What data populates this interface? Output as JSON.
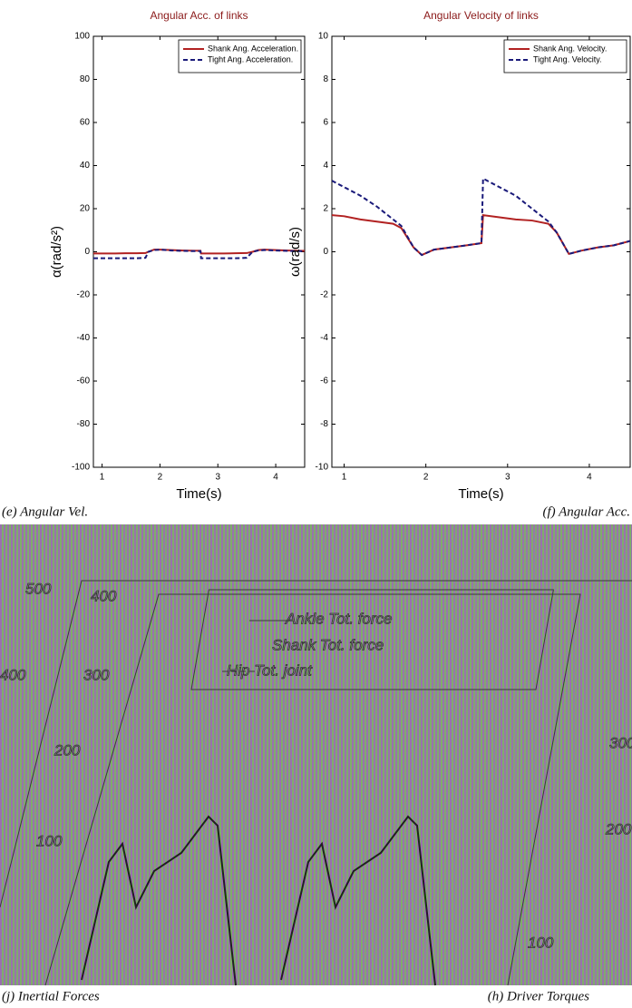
{
  "chart_data": [
    {
      "type": "line",
      "title": "Angular Acc. of links",
      "xlabel": "Time(s)",
      "ylabel": "α(rad/s²)",
      "x": [
        0.85,
        1.0,
        1.2,
        1.4,
        1.6,
        1.75,
        1.8,
        1.9,
        2.0,
        2.2,
        2.4,
        2.6,
        2.7,
        2.71,
        2.9,
        3.1,
        3.3,
        3.5,
        3.6,
        3.7,
        3.8,
        4.0,
        4.2,
        4.4,
        4.5
      ],
      "series": [
        {
          "name": "Shank Ang. Acceleration.",
          "color": "#b22222",
          "style": "solid",
          "values": [
            -0.8,
            -0.8,
            -0.8,
            -0.7,
            -0.7,
            -0.6,
            0,
            1,
            1,
            0.8,
            0.6,
            0.5,
            0.5,
            -0.8,
            -0.8,
            -0.8,
            -0.7,
            -0.6,
            0,
            0.8,
            1,
            0.8,
            0.6,
            0.5,
            0.4
          ]
        },
        {
          "name": "Tight Ang. Acceleration.",
          "color": "#1a1a7a",
          "style": "dashed",
          "values": [
            -3,
            -3,
            -3,
            -3,
            -3,
            -2.8,
            0,
            0.8,
            1,
            0.6,
            0.4,
            0.3,
            0.3,
            -3,
            -3,
            -3,
            -3,
            -2.8,
            0,
            0.6,
            0.8,
            0.6,
            0.4,
            0.3,
            0.2
          ]
        }
      ],
      "xlim": [
        0.85,
        4.5
      ],
      "xticks": [
        1,
        2,
        3,
        4
      ],
      "ylim": [
        -100,
        100
      ],
      "yticks": [
        -100,
        -80,
        -60,
        -40,
        -20,
        0,
        20,
        40,
        60,
        80,
        100
      ],
      "legend": "upper right"
    },
    {
      "type": "line",
      "title": "Angular Velocity of links",
      "xlabel": "Time(s)",
      "ylabel": "ω(rad/s)",
      "x": [
        0.85,
        1.0,
        1.2,
        1.4,
        1.6,
        1.7,
        1.85,
        1.95,
        2.1,
        2.3,
        2.5,
        2.68,
        2.7,
        2.9,
        3.1,
        3.3,
        3.5,
        3.6,
        3.75,
        3.9,
        4.1,
        4.3,
        4.5
      ],
      "series": [
        {
          "name": "Shank Ang. Velocity.",
          "color": "#b22222",
          "style": "solid",
          "values": [
            1.7,
            1.65,
            1.5,
            1.4,
            1.3,
            1.1,
            0.2,
            -0.15,
            0.1,
            0.2,
            0.3,
            0.4,
            1.7,
            1.6,
            1.5,
            1.45,
            1.3,
            0.9,
            -0.1,
            0.05,
            0.2,
            0.3,
            0.5
          ]
        },
        {
          "name": "Tight Ang. Velocity.",
          "color": "#1a1a7a",
          "style": "dashed",
          "values": [
            3.3,
            3.0,
            2.6,
            2.1,
            1.5,
            1.2,
            0.2,
            -0.15,
            0.1,
            0.2,
            0.3,
            0.4,
            3.4,
            3.0,
            2.6,
            2.0,
            1.4,
            0.9,
            -0.1,
            0.05,
            0.2,
            0.3,
            0.5
          ]
        }
      ],
      "xlim": [
        0.85,
        4.5
      ],
      "xticks": [
        1,
        2,
        3,
        4
      ],
      "ylim": [
        -10,
        10
      ],
      "yticks": [
        -10,
        -8,
        -6,
        -4,
        -2,
        0,
        2,
        4,
        6,
        8,
        10
      ],
      "legend": "upper right"
    }
  ],
  "captions": [
    "(e) Angular Vel.",
    "(f) Angular Acc.",
    "(j) Inertial Forces",
    "(h) Driver Torques"
  ],
  "distorted_figure": {
    "labels": [
      "500",
      "400",
      "400",
      "300",
      "200",
      "100",
      "Ankle Tot. force",
      "Shank Tot. force",
      "Hip Tot. joint",
      "300",
      "200",
      "100"
    ]
  }
}
